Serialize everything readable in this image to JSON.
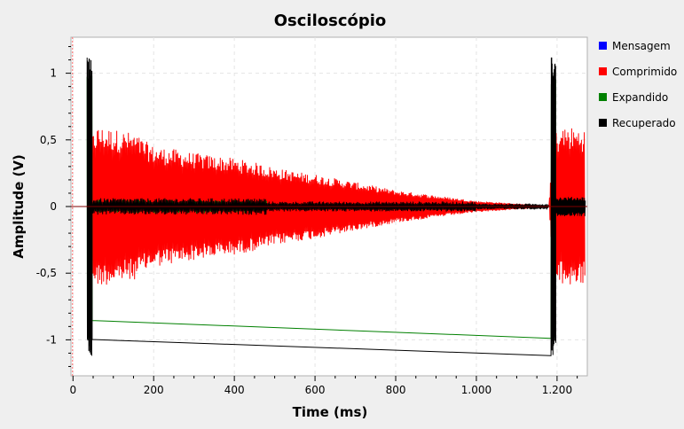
{
  "chart_data": {
    "type": "line",
    "title": "Osciloscópio",
    "xlabel": "Time (ms)",
    "ylabel": "Amplitude (V)",
    "xlim": [
      -5,
      1275
    ],
    "ylim": [
      -1.27,
      1.27
    ],
    "x_ticks": [
      0,
      200,
      400,
      600,
      800,
      1000,
      1200
    ],
    "x_tick_labels": [
      "0",
      "200",
      "400",
      "600",
      "800",
      "1.000",
      "1.200"
    ],
    "y_ticks": [
      1,
      0.5,
      0,
      -0.5,
      -1
    ],
    "y_tick_labels": [
      "1",
      "0,5",
      "0",
      "-0,5",
      "-1"
    ],
    "grid": true,
    "legend_position": "right",
    "series": [
      {
        "name": "Mensagem",
        "color": "#0000ff",
        "x": [
          0,
          1275
        ],
        "y": [
          0,
          0
        ]
      },
      {
        "name": "Comprimido",
        "color": "#ff0000",
        "x": [
          40,
          60,
          100,
          150,
          200,
          250,
          300,
          350,
          400,
          450,
          500,
          550,
          600,
          650,
          700,
          750,
          800,
          850,
          900,
          950,
          1000,
          1050,
          1100,
          1150,
          1180,
          1190,
          1220,
          1270
        ],
        "y": [
          0.5,
          0.6,
          0.58,
          0.55,
          0.45,
          0.43,
          0.4,
          0.38,
          0.36,
          0.33,
          0.29,
          0.26,
          0.24,
          0.21,
          0.18,
          0.15,
          0.12,
          0.1,
          0.08,
          0.06,
          0.04,
          0.03,
          0.02,
          0.01,
          0.0,
          0.55,
          0.6,
          0.58
        ]
      },
      {
        "name": "Expandido",
        "color": "#008000",
        "x": [
          35,
          40,
          45,
          1185,
          1190,
          1195
        ],
        "y": [
          1.0,
          -1.0,
          0.05,
          1.0,
          -1.0,
          0.05
        ]
      },
      {
        "name": "Recuperado",
        "color": "#000000",
        "x": [
          35,
          40,
          45,
          100,
          400,
          1185,
          1190,
          1195,
          1270
        ],
        "y": [
          1.12,
          -1.13,
          0.08,
          0.06,
          0.04,
          1.12,
          -1.13,
          0.08,
          0.05
        ]
      }
    ],
    "markers": [
      {
        "x": 0,
        "color": "#ff6666"
      }
    ]
  }
}
